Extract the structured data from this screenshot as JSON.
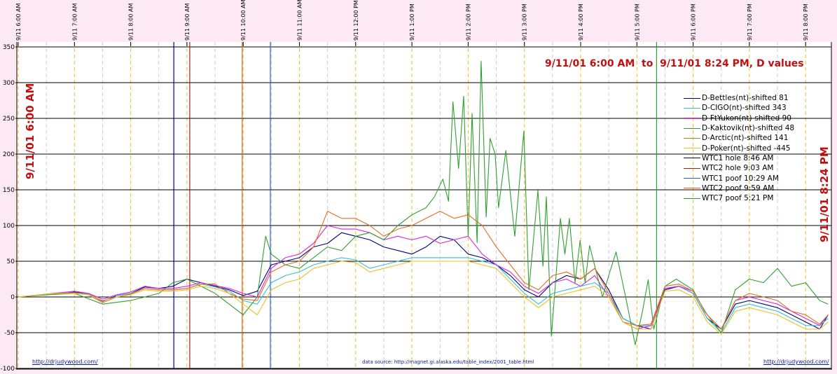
{
  "chart_data": {
    "type": "line",
    "title": "9/11/01 6:00 AM  to  9/11/01 8:24 PM, D values",
    "start_label": "9/11/01 6:00 AM",
    "end_label": "9/11/01 8:24 PM",
    "ylim": [
      -100,
      350
    ],
    "yticks": [
      350,
      300,
      250,
      200,
      150,
      100,
      50,
      0,
      -50,
      -100
    ],
    "xlim_hours": [
      6,
      20.4
    ],
    "x_tick_labels": [
      "9/11 6:00 AM",
      "9/11 7:00 AM",
      "9/11 8:00 AM",
      "9/11 9:00 AM",
      "9/11 10:00 AM",
      "9/11 11:00 AM",
      "9/11 12:00 PM",
      "9/11 1:00 PM",
      "9/11 2:00 PM",
      "9/11 3:00 PM",
      "9/11 4:00 PM",
      "9/11 5:00 PM",
      "9/11 6:00 PM",
      "9/11 7:00 PM",
      "9/11 8:00 PM"
    ],
    "grid": true,
    "legend_position": "right",
    "x": [
      6,
      6.25,
      6.5,
      6.75,
      7,
      7.25,
      7.5,
      7.75,
      8,
      8.25,
      8.5,
      8.75,
      9,
      9.25,
      9.5,
      9.75,
      10,
      10.25,
      10.5,
      10.75,
      11,
      11.25,
      11.5,
      11.75,
      12,
      12.25,
      12.5,
      12.75,
      13,
      13.25,
      13.5,
      13.75,
      14,
      14.25,
      14.5,
      14.75,
      15,
      15.25,
      15.5,
      15.75,
      16,
      16.25,
      16.5,
      16.75,
      17,
      17.25,
      17.5,
      17.75,
      18,
      18.25,
      18.5,
      18.75,
      19,
      19.25,
      19.5,
      19.75,
      20,
      20.25,
      20.4
    ],
    "series": [
      {
        "name": "D-Bettles(nt)-shifted 81",
        "color": "#000080",
        "values": [
          0,
          2,
          3,
          5,
          7,
          4,
          -6,
          2,
          5,
          14,
          12,
          15,
          25,
          20,
          15,
          10,
          2,
          8,
          45,
          50,
          55,
          70,
          75,
          90,
          85,
          80,
          70,
          65,
          60,
          70,
          85,
          80,
          60,
          55,
          45,
          30,
          10,
          0,
          20,
          30,
          25,
          40,
          10,
          -30,
          -40,
          -45,
          10,
          15,
          5,
          -30,
          -45,
          -10,
          -5,
          -10,
          -15,
          -25,
          -35,
          -45,
          -25
        ]
      },
      {
        "name": "D-CIGO(nt)-shifted 343",
        "color": "#30c0e0",
        "values": [
          0,
          2,
          4,
          6,
          6,
          4,
          -3,
          2,
          5,
          12,
          10,
          10,
          12,
          18,
          14,
          8,
          -5,
          -10,
          20,
          30,
          35,
          45,
          50,
          55,
          52,
          40,
          45,
          50,
          55,
          55,
          55,
          55,
          55,
          50,
          45,
          25,
          5,
          -10,
          5,
          10,
          15,
          20,
          5,
          -30,
          -40,
          -40,
          12,
          15,
          5,
          -30,
          -50,
          -15,
          -10,
          -15,
          -20,
          -30,
          -40,
          -40,
          -30
        ]
      },
      {
        "name": "D-FtYukon(nt)-shifted 90",
        "color": "#e020e0",
        "values": [
          0,
          2,
          4,
          6,
          8,
          5,
          -3,
          3,
          7,
          15,
          12,
          12,
          15,
          20,
          16,
          12,
          5,
          0,
          40,
          55,
          60,
          75,
          100,
          95,
          95,
          90,
          80,
          85,
          80,
          85,
          75,
          80,
          85,
          60,
          45,
          35,
          15,
          5,
          20,
          25,
          15,
          30,
          0,
          -35,
          -45,
          -40,
          12,
          15,
          8,
          -25,
          -45,
          -5,
          0,
          -5,
          -10,
          -20,
          -30,
          -40,
          -25
        ]
      },
      {
        "name": "D-Kaktovik(nt)-shifted 48",
        "color": "#30a030",
        "x": [
          6,
          6.5,
          7,
          7.5,
          8,
          8.5,
          8.75,
          9,
          9.25,
          9.5,
          9.75,
          10,
          10.25,
          10.4,
          10.5,
          10.75,
          11,
          11.25,
          11.5,
          11.75,
          12,
          12.25,
          12.5,
          12.75,
          13,
          13.25,
          13.4,
          13.55,
          13.65,
          13.73,
          13.83,
          13.92,
          14,
          14.07,
          14.16,
          14.23,
          14.32,
          14.39,
          14.48,
          14.54,
          14.67,
          14.83,
          14.99,
          15.08,
          15.24,
          15.33,
          15.39,
          15.48,
          15.64,
          15.72,
          15.8,
          15.9,
          15.99,
          16.08,
          16.16,
          16.39,
          16.5,
          16.63,
          16.8,
          16.97,
          17.1,
          17.2,
          17.3,
          17.5,
          17.7,
          18,
          18.2,
          18.5,
          18.75,
          19,
          19.25,
          19.5,
          19.75,
          20,
          20.25,
          20.4
        ],
        "values": [
          0,
          3,
          5,
          -10,
          -5,
          5,
          20,
          25,
          15,
          5,
          -10,
          -25,
          0,
          85,
          60,
          45,
          40,
          55,
          70,
          65,
          85,
          90,
          80,
          100,
          115,
          125,
          140,
          165,
          134,
          273,
          180,
          281,
          85,
          257,
          76,
          330,
          112,
          222,
          200,
          125,
          205,
          85,
          232,
          10,
          149,
          43,
          140,
          -55,
          110,
          60,
          110,
          20,
          79,
          20,
          72,
          0,
          30,
          63,
          0,
          -67,
          -20,
          24,
          -45,
          15,
          25,
          10,
          -20,
          -50,
          10,
          25,
          20,
          40,
          15,
          20,
          -5,
          -10
        ]
      },
      {
        "name": "D-Arctic(nt)-shifted 141",
        "color": "#e07020",
        "values": [
          0,
          2,
          4,
          5,
          6,
          3,
          -8,
          0,
          4,
          12,
          10,
          10,
          12,
          18,
          18,
          5,
          -3,
          -5,
          35,
          45,
          50,
          70,
          120,
          110,
          110,
          100,
          85,
          95,
          100,
          110,
          120,
          110,
          115,
          100,
          70,
          45,
          20,
          10,
          30,
          35,
          25,
          40,
          5,
          -35,
          -40,
          -38,
          15,
          18,
          8,
          -25,
          -45,
          -5,
          5,
          0,
          -5,
          -20,
          -25,
          -38,
          -25
        ]
      },
      {
        "name": "D-Poker(nt)-shifted -445",
        "color": "#f0c020",
        "values": [
          0,
          2,
          4,
          5,
          5,
          3,
          -5,
          0,
          3,
          10,
          8,
          8,
          10,
          15,
          12,
          5,
          -10,
          -25,
          10,
          20,
          25,
          40,
          45,
          50,
          48,
          35,
          40,
          45,
          50,
          50,
          50,
          50,
          50,
          45,
          40,
          20,
          0,
          -15,
          0,
          5,
          10,
          15,
          0,
          -35,
          -45,
          -45,
          8,
          10,
          0,
          -35,
          -52,
          -20,
          -15,
          -20,
          -25,
          -35,
          -45,
          -45,
          -35
        ]
      }
    ],
    "events": [
      {
        "name": "WTC1 hole 8:46 AM",
        "hour": 8.7667,
        "color": "#0000a0"
      },
      {
        "name": "WTC2 hole 9:03 AM",
        "hour": 9.05,
        "color": "#a02020"
      },
      {
        "name": "WTC1 poof 10:29 AM",
        "hour": 10.4833,
        "color": "#3060d0"
      },
      {
        "name": "WTC2 poof 9:59 AM",
        "hour": 9.9833,
        "color": "#e06020"
      },
      {
        "name": "WTC7 poof 5:21 PM",
        "hour": 17.35,
        "color": "#30a030"
      }
    ]
  },
  "footer": {
    "left_link": "http://drjudywood.com/",
    "source": "data source: http://magnet.gi.alaska.edu/table_index/2001_table.html",
    "right_link": "http://drjudywood.com/"
  }
}
